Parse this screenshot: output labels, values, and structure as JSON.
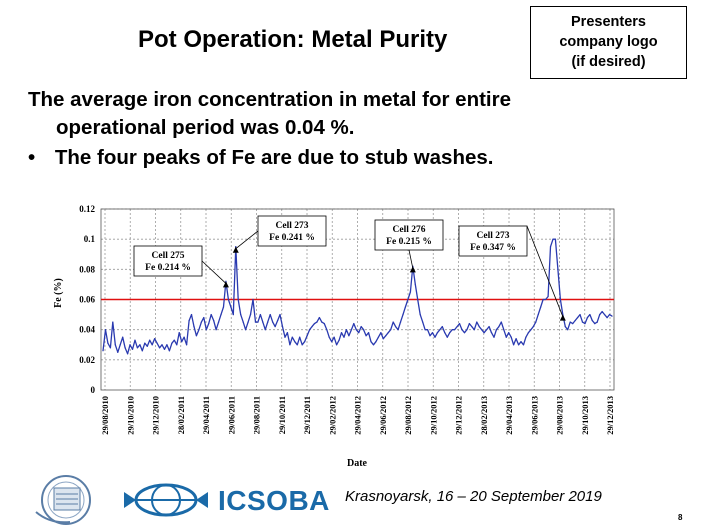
{
  "slide": {
    "title": "Pot Operation: Metal Purity",
    "logo_placeholder": [
      "Presenters",
      "company logo",
      "(if desired)"
    ],
    "paragraph_line1": "The average iron concentration in metal for entire",
    "paragraph_line2": "operational period was 0.04 %.",
    "bullet_symbol": "•",
    "bullet_text": "The four peaks of Fe are due to stub washes.",
    "footer": "Krasnoyarsk, 16 – 20 September 2019",
    "page_number": "8",
    "organization_logo_text": "ICSOBA"
  },
  "colors": {
    "series": "#2a3ab0",
    "threshold": "#e01010",
    "grid": "#9a9a9a",
    "icsoba_blue": "#1a6aa8"
  },
  "chart_data": {
    "type": "line",
    "title": "",
    "xlabel": "Date",
    "ylabel": "Fe (%)",
    "ylim": [
      0,
      0.12
    ],
    "yticks": [
      0,
      0.02,
      0.04,
      0.06,
      0.08,
      0.1,
      0.12
    ],
    "ytick_labels": [
      "0",
      "0.02",
      "0.04",
      "0.06",
      "0.08",
      "0.1",
      "0.12"
    ],
    "xticks": [
      "29/08/2010",
      "29/10/2010",
      "29/12/2010",
      "28/02/2011",
      "29/04/2011",
      "29/06/2011",
      "29/08/2011",
      "29/10/2011",
      "29/12/2011",
      "29/02/2012",
      "29/04/2012",
      "29/06/2012",
      "29/08/2012",
      "29/10/2012",
      "29/12/2012",
      "28/02/2013",
      "29/04/2013",
      "29/06/2013",
      "29/08/2013",
      "29/10/2013",
      "29/12/2013"
    ],
    "threshold": 0.06,
    "series": [
      {
        "name": "Fe",
        "values": [
          0.026,
          0.04,
          0.031,
          0.028,
          0.045,
          0.03,
          0.025,
          0.03,
          0.035,
          0.028,
          0.024,
          0.03,
          0.027,
          0.033,
          0.028,
          0.03,
          0.026,
          0.031,
          0.029,
          0.033,
          0.03,
          0.034,
          0.031,
          0.028,
          0.03,
          0.027,
          0.03,
          0.026,
          0.031,
          0.033,
          0.03,
          0.038,
          0.032,
          0.035,
          0.03,
          0.046,
          0.05,
          0.042,
          0.036,
          0.04,
          0.045,
          0.048,
          0.04,
          0.044,
          0.05,
          0.046,
          0.04,
          0.045,
          0.05,
          0.055,
          0.072,
          0.06,
          0.055,
          0.05,
          0.095,
          0.06,
          0.05,
          0.045,
          0.04,
          0.045,
          0.05,
          0.06,
          0.045,
          0.045,
          0.05,
          0.045,
          0.04,
          0.045,
          0.05,
          0.045,
          0.042,
          0.046,
          0.05,
          0.042,
          0.035,
          0.038,
          0.03,
          0.035,
          0.032,
          0.03,
          0.035,
          0.03,
          0.032,
          0.036,
          0.04,
          0.042,
          0.044,
          0.045,
          0.048,
          0.045,
          0.044,
          0.04,
          0.035,
          0.032,
          0.035,
          0.03,
          0.033,
          0.038,
          0.035,
          0.04,
          0.036,
          0.04,
          0.044,
          0.04,
          0.038,
          0.042,
          0.04,
          0.036,
          0.038,
          0.032,
          0.03,
          0.032,
          0.035,
          0.038,
          0.034,
          0.036,
          0.038,
          0.04,
          0.045,
          0.042,
          0.04,
          0.045,
          0.05,
          0.055,
          0.06,
          0.065,
          0.082,
          0.07,
          0.06,
          0.05,
          0.045,
          0.04,
          0.04,
          0.036,
          0.038,
          0.035,
          0.038,
          0.04,
          0.042,
          0.038,
          0.035,
          0.038,
          0.04,
          0.04,
          0.042,
          0.044,
          0.04,
          0.038,
          0.04,
          0.044,
          0.042,
          0.04,
          0.045,
          0.042,
          0.04,
          0.038,
          0.04,
          0.042,
          0.038,
          0.035,
          0.04,
          0.042,
          0.045,
          0.04,
          0.035,
          0.038,
          0.035,
          0.03,
          0.034,
          0.03,
          0.032,
          0.03,
          0.035,
          0.038,
          0.04,
          0.042,
          0.045,
          0.05,
          0.055,
          0.06,
          0.06,
          0.062,
          0.095,
          0.1,
          0.1,
          0.08,
          0.06,
          0.05,
          0.042,
          0.04,
          0.045,
          0.044,
          0.046,
          0.048,
          0.05,
          0.045,
          0.044,
          0.048,
          0.05,
          0.046,
          0.044,
          0.045,
          0.05,
          0.052,
          0.05,
          0.048,
          0.05,
          0.049
        ]
      }
    ],
    "annotations": [
      {
        "lines": [
          "Cell 275",
          "Fe 0.214 %"
        ],
        "point_index": 50
      },
      {
        "lines": [
          "Cell 273",
          "Fe 0.241 %"
        ],
        "point_index": 54
      },
      {
        "lines": [
          "Cell 276",
          "Fe 0.215 %"
        ],
        "point_index": 126
      },
      {
        "lines": [
          "Cell 273",
          "Fe 0.347 %"
        ],
        "point_index": 187
      }
    ]
  }
}
